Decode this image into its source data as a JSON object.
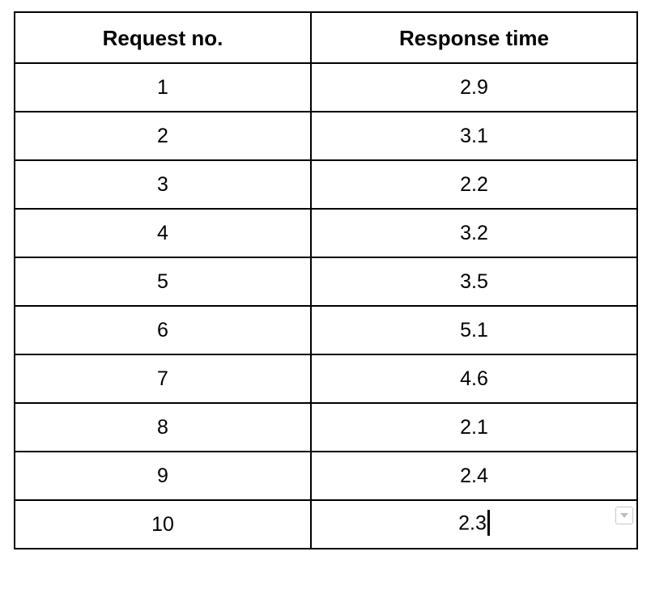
{
  "table": {
    "headers": [
      "Request no.",
      "Response time"
    ],
    "rows": [
      [
        "1",
        "2.9"
      ],
      [
        "2",
        "3.1"
      ],
      [
        "3",
        "2.2"
      ],
      [
        "4",
        "3.2"
      ],
      [
        "5",
        "3.5"
      ],
      [
        "6",
        "5.1"
      ],
      [
        "7",
        "4.6"
      ],
      [
        "8",
        "2.1"
      ],
      [
        "9",
        "2.4"
      ],
      [
        "10",
        "2.3"
      ]
    ]
  },
  "icons": {
    "cell_menu": "chevron-down-icon",
    "caret": "text-cursor"
  },
  "colors": {
    "border": "#000000",
    "menu_border": "#c8c8c8",
    "menu_arrow": "#bdbdbd"
  }
}
